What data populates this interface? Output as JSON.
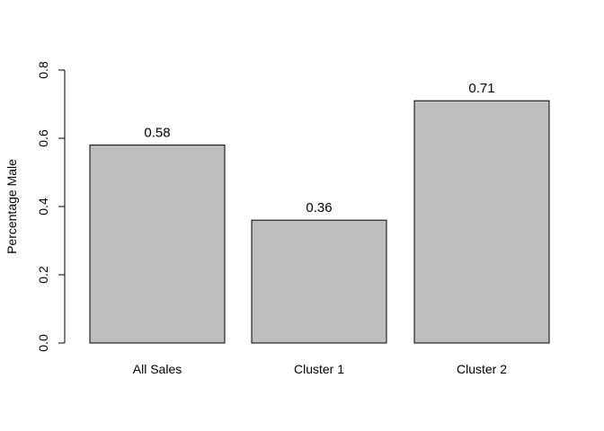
{
  "chart_data": {
    "type": "bar",
    "title": "",
    "xlabel": "",
    "ylabel": "Percentage Male",
    "ylim": [
      0,
      0.8
    ],
    "yticks": [
      "0.0",
      "0.2",
      "0.4",
      "0.6",
      "0.8"
    ],
    "categories": [
      "All Sales",
      "Cluster 1",
      "Cluster 2"
    ],
    "values": [
      0.58,
      0.36,
      0.71
    ],
    "value_labels": [
      "0.58",
      "0.36",
      "0.71"
    ],
    "bar_color": "#bebebe",
    "grid": false,
    "legend": "none"
  }
}
